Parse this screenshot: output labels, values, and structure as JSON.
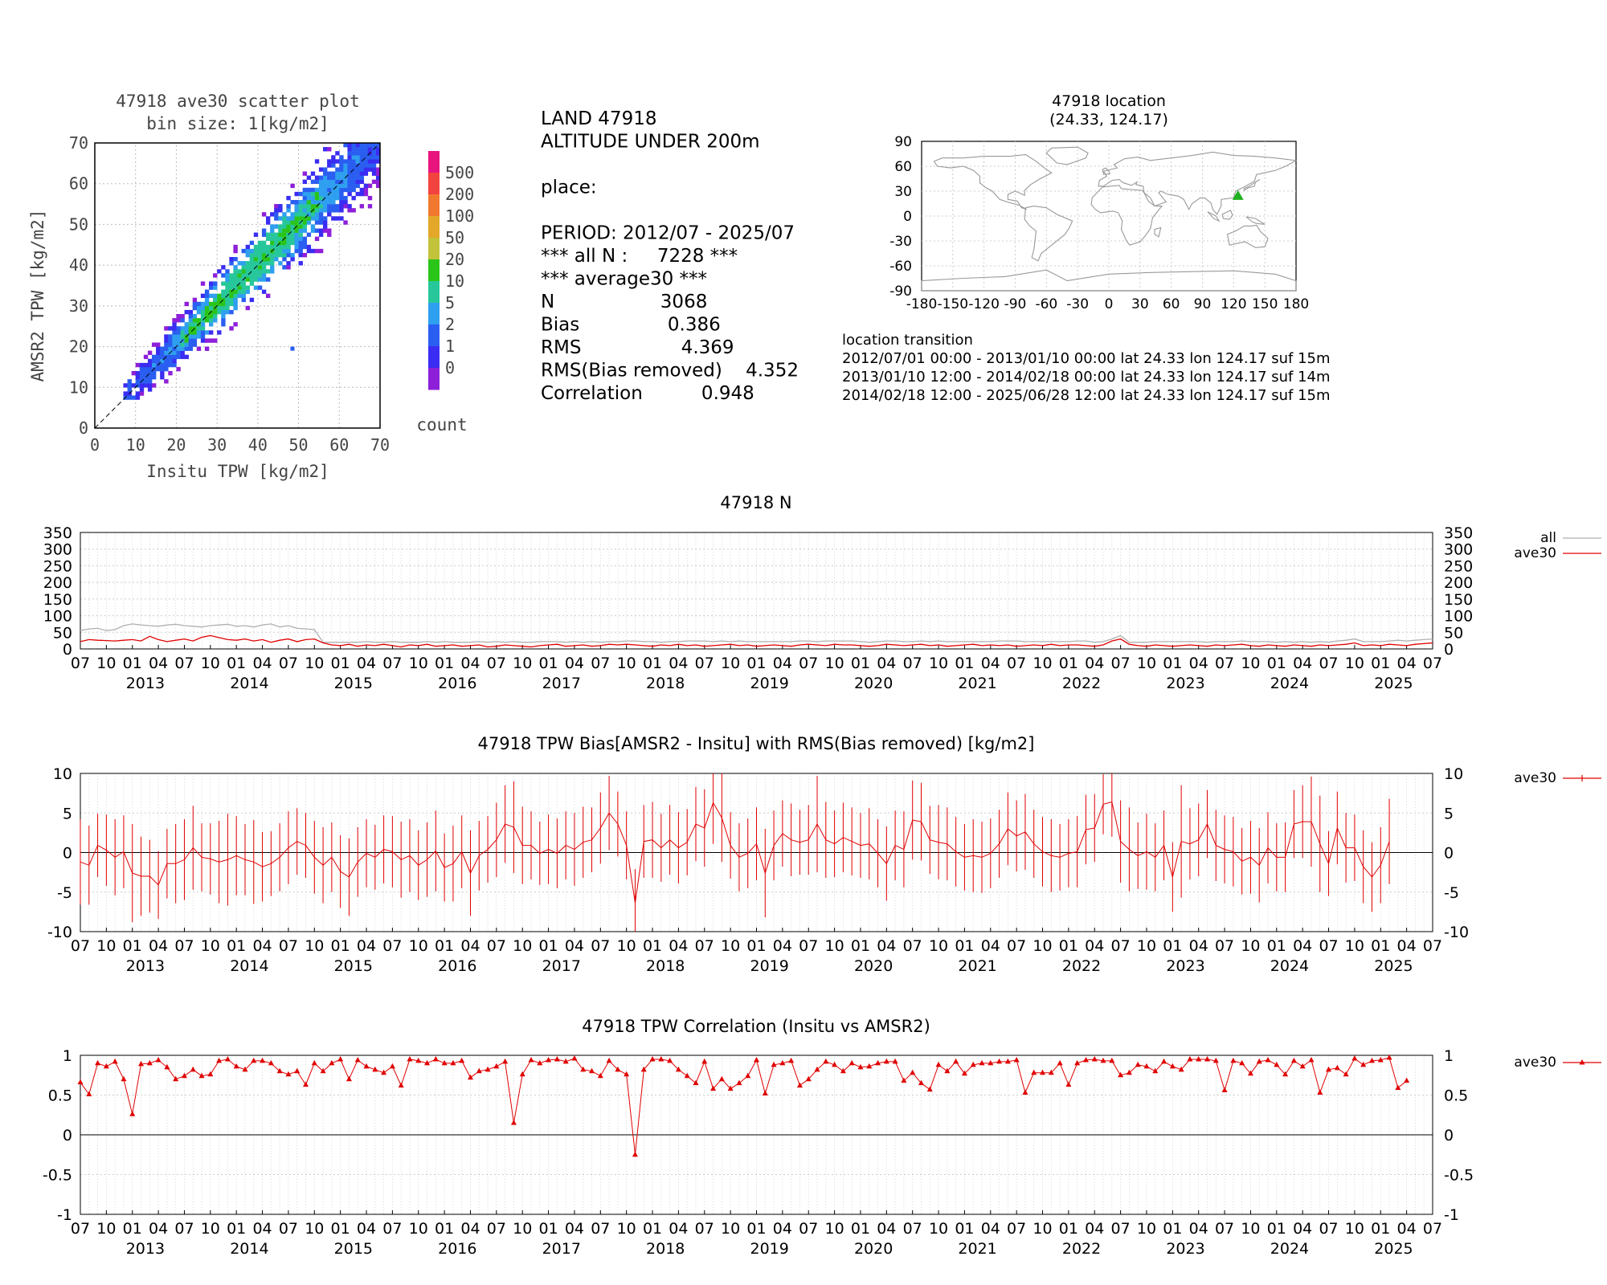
{
  "scatter": {
    "title": "47918 ave30 scatter plot",
    "subtitle": "bin size: 1[kg/m2]",
    "xlabel": "Insitu TPW [kg/m2]",
    "ylabel": "AMSR2 TPW [kg/m2]",
    "ticks": [
      "0",
      "10",
      "20",
      "30",
      "40",
      "50",
      "60",
      "70"
    ],
    "colorbar_levels": [
      "500",
      "200",
      "100",
      "50",
      "20",
      "10",
      "5",
      "2",
      "1",
      "0"
    ],
    "colorbar_colors": [
      "#e8157f",
      "#f2433f",
      "#f1792f",
      "#e3a72a",
      "#c2c33a",
      "#2bc51a",
      "#27c79b",
      "#2f9ff0",
      "#2a5ef1",
      "#3a2cf2",
      "#8e1fd9"
    ],
    "colorbar_label": "count"
  },
  "stats": {
    "lines": [
      "LAND 47918",
      "ALTITUDE UNDER 200m",
      "",
      "place:",
      "",
      "PERIOD: 2012/07 - 2025/07",
      "*** all N :     7228 ***",
      "*** average30 ***",
      "N                  3068",
      "Bias               0.386",
      "RMS                 4.369",
      "RMS(Bias removed)    4.352",
      "Correlation          0.948"
    ]
  },
  "location": {
    "title": "47918 location",
    "subtitle": "(24.33, 124.17)",
    "lat": 24.33,
    "lon": 124.17,
    "marker_color": "#1fb01f",
    "yticks": [
      "90",
      "60",
      "30",
      "0",
      "-30",
      "-60",
      "-90"
    ],
    "xticks": [
      "-180",
      "-150",
      "-120",
      "-90",
      "-60",
      "-30",
      "0",
      "30",
      "60",
      "90",
      "120",
      "150",
      "180"
    ],
    "transition_header": "location transition",
    "transitions": [
      "2012/07/01 00:00 - 2013/01/10 00:00 lat 24.33 lon 124.17 suf 15m",
      "2013/01/10 12:00 - 2014/02/18 00:00 lat 24.33 lon 124.17 suf 14m",
      "2014/02/18 12:00 - 2025/06/28 12:00 lat 24.33 lon 124.17 suf 15m"
    ]
  },
  "time_axis": {
    "month_labels": [
      "07",
      "10",
      "01",
      "04"
    ],
    "years": [
      "2013",
      "2014",
      "2015",
      "2016",
      "2017",
      "2018",
      "2019",
      "2020",
      "2021",
      "2022",
      "2023",
      "2024",
      "2025"
    ]
  },
  "chart_data": [
    {
      "type": "line",
      "title": "47918 N",
      "ylim": [
        0,
        350
      ],
      "yticks": [
        "350",
        "300",
        "250",
        "200",
        "150",
        "100",
        "50",
        "0"
      ],
      "x_start": "2012/07",
      "x_end": "2025/07",
      "series": [
        {
          "name": "all",
          "color": "#b0b0b0",
          "values": [
            55,
            60,
            62,
            55,
            58,
            70,
            75,
            72,
            70,
            68,
            72,
            74,
            70,
            68,
            66,
            70,
            72,
            74,
            68,
            70,
            66,
            72,
            75,
            66,
            70,
            62,
            60,
            58,
            20,
            20,
            20,
            20,
            20,
            22,
            20,
            20,
            22,
            20,
            20,
            20,
            22,
            20,
            22,
            20,
            20,
            20,
            22,
            20,
            22,
            20,
            22,
            20,
            20,
            22,
            22,
            22,
            20,
            22,
            20,
            22,
            20,
            22,
            22,
            24,
            24,
            22,
            22,
            20,
            22,
            22,
            24,
            24,
            24,
            22,
            24,
            22,
            24,
            22,
            22,
            22,
            22,
            22,
            22,
            24,
            24,
            22,
            24,
            24,
            24,
            24,
            22,
            20,
            22,
            24,
            24,
            22,
            22,
            24,
            22,
            24,
            22,
            22,
            22,
            22,
            22,
            22,
            24,
            24,
            24,
            22,
            22,
            22,
            22,
            22,
            22,
            24,
            24,
            20,
            22,
            30,
            40,
            20,
            20,
            20,
            22,
            22,
            22,
            22,
            22,
            22,
            20,
            22,
            22,
            22,
            24,
            22,
            22,
            22,
            20,
            22,
            20,
            22,
            20,
            22,
            20,
            24,
            26,
            30,
            22,
            22,
            22,
            24,
            26,
            24,
            26,
            28,
            30
          ]
        },
        {
          "name": "ave30",
          "color": "#e00000",
          "values": [
            22,
            28,
            26,
            25,
            24,
            26,
            28,
            24,
            38,
            28,
            22,
            26,
            30,
            24,
            35,
            40,
            34,
            28,
            26,
            30,
            24,
            28,
            20,
            26,
            30,
            22,
            28,
            30,
            18,
            12,
            10,
            14,
            8,
            12,
            10,
            14,
            10,
            6,
            12,
            10,
            14,
            8,
            10,
            12,
            8,
            10,
            12,
            6,
            8,
            12,
            10,
            8,
            6,
            10,
            12,
            14,
            8,
            10,
            12,
            8,
            10,
            14,
            12,
            14,
            12,
            10,
            8,
            12,
            10,
            14,
            10,
            12,
            8,
            10,
            12,
            14,
            10,
            12,
            8,
            10,
            12,
            10,
            8,
            12,
            14,
            12,
            10,
            14,
            12,
            12,
            10,
            8,
            10,
            14,
            12,
            10,
            12,
            14,
            10,
            12,
            8,
            10,
            12,
            14,
            10,
            12,
            10,
            12,
            8,
            10,
            12,
            10,
            14,
            10,
            12,
            12,
            10,
            8,
            12,
            24,
            30,
            14,
            10,
            8,
            12,
            10,
            8,
            10,
            12,
            10,
            8,
            12,
            10,
            12,
            14,
            10,
            8,
            12,
            10,
            8,
            12,
            10,
            8,
            12,
            10,
            12,
            14,
            18,
            10,
            12,
            10,
            14,
            12,
            10,
            14,
            16,
            18
          ]
        }
      ]
    },
    {
      "type": "line",
      "title": "47918 TPW Bias[AMSR2 - Insitu] with RMS(Bias removed) [kg/m2]",
      "ylim": [
        -10,
        10
      ],
      "yticks": [
        "10",
        "5",
        "0",
        "-5",
        "-10"
      ],
      "series": [
        {
          "name": "ave30",
          "color": "#e00000",
          "values": [
            -1.2,
            -1.6,
            0.9,
            0.3,
            -0.6,
            0.1,
            -2.6,
            -3.0,
            -3.0,
            -4.1,
            -1.4,
            -1.4,
            -0.9,
            0.6,
            -0.6,
            -0.8,
            -1.2,
            -0.9,
            -0.4,
            -0.9,
            -1.2,
            -1.8,
            -1.4,
            -0.6,
            0.6,
            1.4,
            0.9,
            -0.6,
            -1.6,
            -0.6,
            -2.4,
            -3.1,
            -1.2,
            -0.1,
            -0.6,
            0.4,
            0.1,
            -0.9,
            -0.4,
            -1.6,
            -0.9,
            0.2,
            -1.9,
            -1.4,
            0.1,
            -2.6,
            -0.4,
            0.4,
            1.6,
            3.6,
            3.2,
            0.9,
            0.9,
            -0.1,
            0.4,
            -0.1,
            0.9,
            0.4,
            1.3,
            1.6,
            3.1,
            5.0,
            3.6,
            0.9,
            -6.4,
            1.4,
            1.6,
            0.6,
            1.6,
            0.6,
            1.3,
            3.6,
            3.1,
            6.3,
            4.4,
            0.9,
            -0.6,
            -0.1,
            1.1,
            -2.6,
            0.9,
            2.4,
            1.6,
            1.3,
            1.6,
            3.6,
            1.6,
            1.1,
            1.9,
            1.4,
            0.9,
            1.1,
            -0.1,
            -1.4,
            0.9,
            0.4,
            4.1,
            3.9,
            1.6,
            1.3,
            1.1,
            0.1,
            -0.6,
            -0.4,
            -0.6,
            -0.1,
            1.1,
            3.0,
            2.1,
            2.6,
            1.1,
            0.1,
            -0.4,
            -0.6,
            -0.1,
            0.1,
            2.9,
            3.1,
            6.1,
            6.4,
            1.4,
            0.4,
            -0.4,
            0.1,
            -0.6,
            0.9,
            -3.1,
            1.4,
            1.1,
            1.6,
            3.6,
            0.9,
            0.4,
            0.1,
            -1.1,
            -0.6,
            -1.6,
            0.6,
            -0.6,
            -0.6,
            3.6,
            3.9,
            3.9,
            1.1,
            -1.4,
            3.1,
            0.6,
            0.6,
            -1.8,
            -3.1,
            -1.6,
            1.4
          ],
          "rms": [
            5.4,
            5.0,
            4.0,
            4.5,
            4.8,
            4.6,
            6.2,
            5.0,
            4.6,
            4.3,
            4.4,
            5.0,
            5.1,
            5.3,
            4.3,
            4.5,
            5.2,
            5.8,
            5.0,
            4.5,
            5.3,
            4.4,
            4.1,
            4.3,
            4.6,
            4.2,
            4.1,
            4.6,
            4.8,
            4.4,
            4.6,
            4.9,
            4.4,
            4.3,
            4.1,
            4.3,
            4.5,
            4.8,
            4.6,
            4.4,
            4.7,
            5.1,
            4.3,
            4.8,
            4.6,
            5.4,
            4.4,
            4.2,
            4.7,
            4.9,
            5.8,
            4.9,
            4.3,
            4.0,
            4.4,
            4.4,
            4.3,
            4.6,
            4.5,
            4.1,
            4.5,
            4.7,
            4.1,
            4.3,
            4.3,
            4.6,
            4.8,
            4.3,
            4.4,
            4.5,
            4.2,
            4.7,
            4.9,
            5.2,
            5.6,
            4.2,
            4.3,
            4.4,
            4.6,
            5.6,
            4.4,
            4.2,
            4.6,
            4.1,
            4.4,
            6.1,
            4.8,
            4.2,
            4.4,
            4.3,
            4.1,
            4.5,
            4.3,
            4.7,
            4.4,
            4.8,
            5.0,
            4.9,
            4.3,
            4.7,
            4.6,
            4.4,
            4.2,
            4.6,
            4.5,
            4.4,
            4.3,
            4.6,
            4.5,
            4.8,
            4.3,
            4.4,
            4.6,
            4.2,
            4.3,
            4.5,
            4.4,
            4.3,
            3.8,
            4.4,
            5.2,
            5.3,
            4.2,
            4.8,
            4.3,
            4.4,
            4.4,
            7.1,
            4.5,
            4.6,
            4.3,
            4.5,
            4.3,
            4.4,
            4.2,
            4.6,
            4.7,
            4.5,
            4.3,
            4.4,
            4.3,
            4.6,
            5.7,
            6.1,
            4.1,
            4.6,
            4.4,
            4.2,
            4.6,
            4.4,
            4.8,
            5.4,
            4.2
          ]
        }
      ]
    },
    {
      "type": "line",
      "title": "47918 TPW Correlation (Insitu vs AMSR2)",
      "ylim": [
        -1,
        1
      ],
      "yticks": [
        "1",
        "0.5",
        "0",
        "-0.5",
        "-1"
      ],
      "series": [
        {
          "name": "ave30",
          "color": "#e00000",
          "values": [
            0.66,
            0.51,
            0.9,
            0.86,
            0.92,
            0.7,
            0.26,
            0.89,
            0.9,
            0.94,
            0.85,
            0.7,
            0.74,
            0.82,
            0.74,
            0.76,
            0.93,
            0.95,
            0.86,
            0.82,
            0.93,
            0.93,
            0.9,
            0.8,
            0.76,
            0.8,
            0.63,
            0.9,
            0.8,
            0.9,
            0.95,
            0.7,
            0.94,
            0.86,
            0.82,
            0.78,
            0.86,
            0.62,
            0.95,
            0.93,
            0.9,
            0.95,
            0.9,
            0.9,
            0.93,
            0.72,
            0.8,
            0.82,
            0.86,
            0.92,
            0.15,
            0.76,
            0.94,
            0.9,
            0.94,
            0.95,
            0.92,
            0.96,
            0.82,
            0.8,
            0.74,
            0.93,
            0.82,
            0.76,
            -0.25,
            0.82,
            0.95,
            0.95,
            0.93,
            0.82,
            0.74,
            0.65,
            0.92,
            0.58,
            0.7,
            0.58,
            0.65,
            0.74,
            0.94,
            0.52,
            0.88,
            0.9,
            0.93,
            0.62,
            0.7,
            0.82,
            0.92,
            0.88,
            0.8,
            0.9,
            0.85,
            0.86,
            0.9,
            0.92,
            0.92,
            0.68,
            0.78,
            0.65,
            0.57,
            0.88,
            0.8,
            0.92,
            0.77,
            0.88,
            0.9,
            0.9,
            0.92,
            0.92,
            0.94,
            0.53,
            0.78,
            0.78,
            0.78,
            0.9,
            0.63,
            0.9,
            0.94,
            0.95,
            0.93,
            0.93,
            0.75,
            0.78,
            0.88,
            0.86,
            0.8,
            0.92,
            0.86,
            0.82,
            0.95,
            0.95,
            0.95,
            0.93,
            0.56,
            0.93,
            0.9,
            0.77,
            0.92,
            0.94,
            0.88,
            0.76,
            0.93,
            0.86,
            0.94,
            0.53,
            0.82,
            0.84,
            0.76,
            0.96,
            0.88,
            0.93,
            0.94,
            0.97,
            0.59,
            0.68
          ]
        }
      ]
    }
  ]
}
